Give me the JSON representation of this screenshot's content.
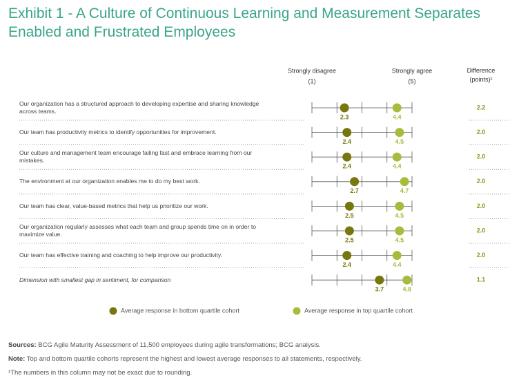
{
  "chart_data": {
    "type": "dot",
    "title": "Exhibit 1 - A Culture of Continuous Learning and Measurement Separates Enabled and Frustrated Employees",
    "low_label": "Strongly disagree",
    "low_value_label": "(1)",
    "high_label": "Strongly agree",
    "high_value_label": "(5)",
    "difference_header": "Difference (points)¹",
    "categories": [
      "Our organization has a structured approach to developing expertise and sharing knowledge across teams.",
      "Our team has productivity metrics to identify opportunities for improvement.",
      "Our culture and management team encourage failing fast and embrace learning from our mistakes.",
      "The environment at our organization enables me to do my best work.",
      "Our team has clear, value-based metrics that help us prioritize our work.",
      "Our organization regularly assesses what each team and group spends time on in order to maximize value.",
      "Our team has effective training and coaching to help improve our productivity.",
      "Dimension with smallest gap in sentiment, for comparison"
    ],
    "italic_categories": [
      false,
      false,
      false,
      false,
      false,
      false,
      false,
      true
    ],
    "series": [
      {
        "name": "Average response in bottom quartile cohort",
        "color": "#77770f",
        "values": [
          2.3,
          2.4,
          2.4,
          2.7,
          2.5,
          2.5,
          2.4,
          3.7
        ]
      },
      {
        "name": "Average response in top quartile cohort",
        "color": "#a9bb3c",
        "values": [
          4.4,
          4.5,
          4.4,
          4.7,
          4.5,
          4.5,
          4.4,
          4.8
        ]
      }
    ],
    "differences": [
      "2.2",
      "2.0",
      "2.0",
      "2.0",
      "2.0",
      "2.0",
      "2.0",
      "1.1"
    ],
    "difference_color": "#8a9b1a",
    "xlim": [
      1,
      5
    ],
    "xticks": [
      1,
      2,
      3,
      4,
      5
    ]
  },
  "footer": {
    "sources_label": "Sources:",
    "sources": "BCG Agile Maturity Assessment of 11,500 employees during agile transformations; BCG analysis.",
    "note_label": "Note:",
    "note": "Top and bottom quartile cohorts represent the highest and lowest average responses to all statements, respectively.",
    "footnote": "¹The numbers in this column may not be exact due to rounding."
  }
}
